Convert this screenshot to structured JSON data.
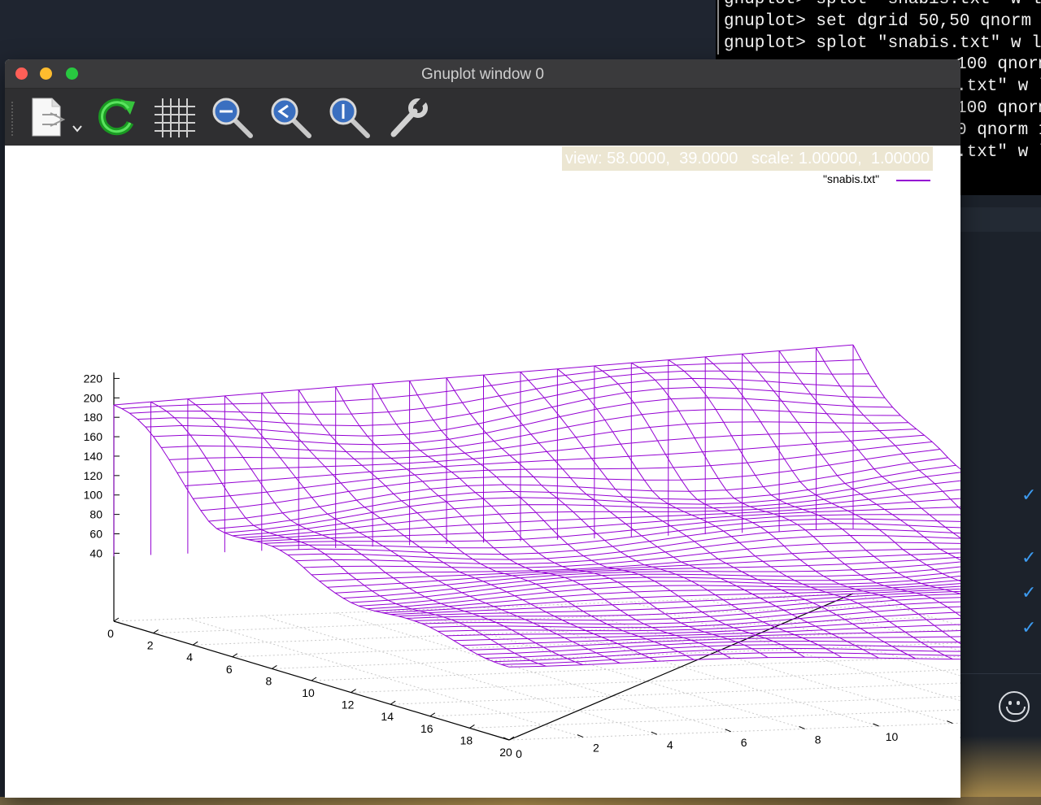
{
  "terminal": {
    "lines": [
      "gnuplot> splot \"snabis.txt\" w l",
      "gnuplot> set dgrid 50,50 qnorm 1",
      "gnuplot> splot \"snabis.txt\" w l"
    ],
    "fragments": [
      "100 qnorm",
      ".txt\" w l",
      "100 qnorm",
      "0 qnorm 1",
      ".txt\" w l"
    ]
  },
  "window": {
    "title": "Gnuplot window 0",
    "toolbar": [
      "export-icon",
      "replot-icon",
      "grid-icon",
      "zoom-out-icon",
      "zoom-previous-icon",
      "zoom-next-icon",
      "settings-wrench-icon"
    ],
    "status": "view: 58.0000,  39.0000   scale: 1.00000,  1.00000"
  },
  "chart_data": {
    "type": "surface",
    "style": "lines",
    "legend": "\"snabis.txt\"",
    "legend_position": "top-right",
    "series_color": "#9400d3",
    "view": [
      58,
      39
    ],
    "scale": [
      1,
      1
    ],
    "x_ticks": [
      "0",
      "2",
      "4",
      "6",
      "8",
      "10",
      "12",
      "14",
      "16",
      "18",
      "20"
    ],
    "y_ticks": [
      "0",
      "2",
      "4",
      "6",
      "8",
      "10",
      "12",
      "14",
      "16",
      "18",
      "20"
    ],
    "z_ticks": [
      "40",
      "60",
      "80",
      "100",
      "120",
      "140",
      "160",
      "180",
      "200",
      "220"
    ],
    "xlim": [
      0,
      20
    ],
    "ylim": [
      0,
      20
    ],
    "zlim": [
      0,
      220
    ],
    "grid": "dotted base grid",
    "surface_samples": {
      "x": [
        0,
        5,
        10,
        15,
        20
      ],
      "y_at_0": [
        200,
        125,
        95,
        80,
        70
      ],
      "y_at_20": [
        230,
        140,
        100,
        85,
        55
      ]
    }
  },
  "sidebar": {
    "checks": [
      "✓",
      "✓",
      "✓",
      "✓"
    ]
  }
}
